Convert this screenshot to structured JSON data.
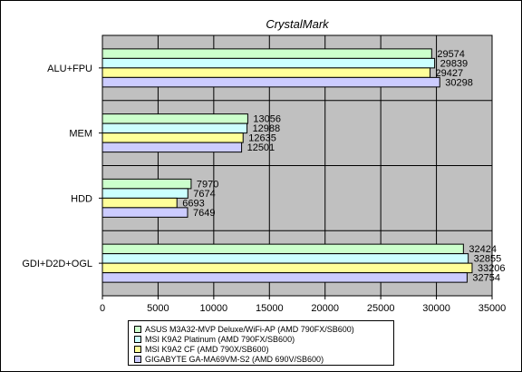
{
  "chart_data": {
    "type": "bar",
    "orientation": "horizontal",
    "title": "CrystalMark",
    "xlabel": "",
    "ylabel": "",
    "xlim": [
      0,
      35000
    ],
    "xticks": [
      0,
      5000,
      10000,
      15000,
      20000,
      25000,
      30000,
      35000
    ],
    "grid": true,
    "legend_position": "bottom",
    "categories": [
      "ALU+FPU",
      "MEM",
      "HDD",
      "GDI+D2D+OGL"
    ],
    "series": [
      {
        "name": "ASUS M3A32-MVP Deluxe/WiFi-AP (AMD 790FX/SB600)",
        "color": "#ccffcc",
        "values": [
          29574,
          13056,
          7970,
          32424
        ]
      },
      {
        "name": "MSI K9A2 Platinum (AMD 790FX/SB600)",
        "color": "#ccffff",
        "values": [
          29839,
          12988,
          7674,
          32855
        ]
      },
      {
        "name": "MSI K9A2 CF (AMD 790X/SB600)",
        "color": "#ffff99",
        "values": [
          29427,
          12635,
          6693,
          33206
        ]
      },
      {
        "name": "GIGABYTE GA-MA69VM-S2 (AMD 690V/SB600)",
        "color": "#ccccff",
        "values": [
          30298,
          12501,
          7649,
          32754
        ]
      }
    ]
  }
}
